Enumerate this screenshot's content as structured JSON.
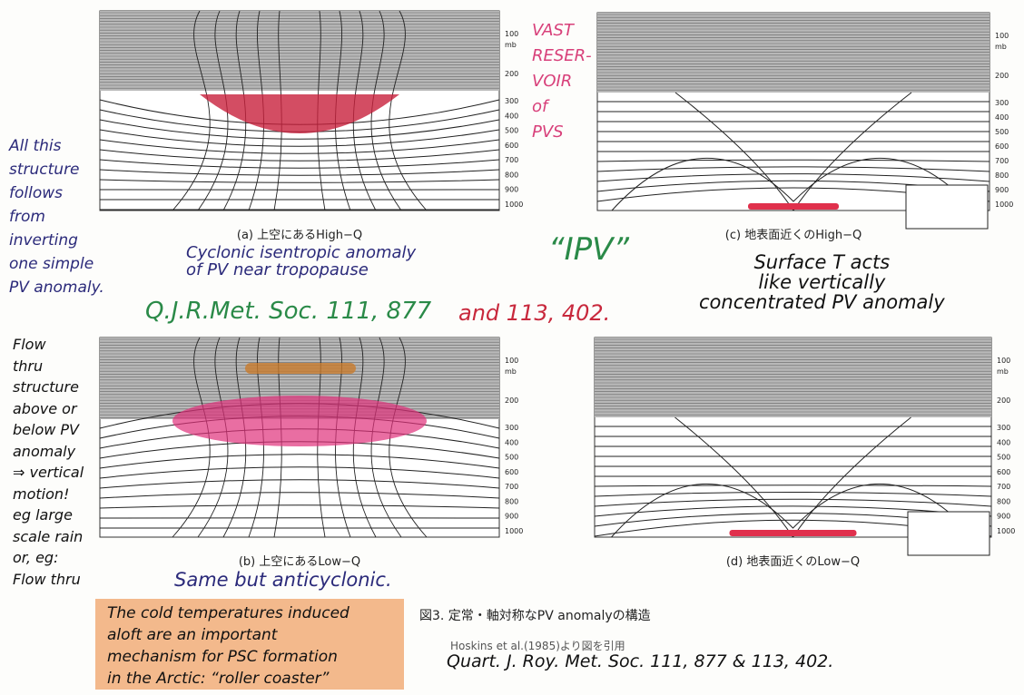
{
  "panels": [
    {
      "caption": "(a) 上空にあるHigh−Q",
      "pressure_labels": [
        "100",
        "mb",
        "200",
        "300",
        "400",
        "500",
        "600",
        "700",
        "800",
        "900",
        "1000"
      ]
    },
    {
      "caption": "(c) 地表面近くのHigh−Q",
      "pressure_labels": [
        "100",
        "mb",
        "200",
        "300",
        "400",
        "500",
        "600",
        "700",
        "800",
        "900",
        "1000"
      ]
    },
    {
      "caption": "(b) 上空にあるLow−Q",
      "pressure_labels": [
        "100",
        "mb",
        "200",
        "300",
        "400",
        "500",
        "600",
        "700",
        "800",
        "900",
        "1000"
      ]
    },
    {
      "caption": "(d) 地表面近くのLow−Q",
      "pressure_labels": [
        "100",
        "mb",
        "200",
        "300",
        "400",
        "500",
        "600",
        "700",
        "800",
        "900",
        "1000"
      ]
    }
  ],
  "figure_caption": {
    "title": "図3. 定常・軸対称なPV anomalyの構造",
    "source": "Hoskins et al.(1985)より図を引用"
  },
  "notes": {
    "left_top": [
      "All this",
      "structure",
      "follows",
      "from",
      "inverting",
      "one simple",
      "PV anomaly."
    ],
    "left_bottom": [
      "Flow",
      "thru",
      "structure",
      "above or",
      "below PV",
      "anomaly",
      "⇒ vertical",
      "motion!",
      "eg large",
      "scale rain",
      "or, eg:",
      "Flow thru"
    ],
    "vast": [
      "VAST",
      "RESER-",
      "VOIR",
      "of",
      "PVS"
    ],
    "cyclonic": [
      "Cyclonic isentropic anomaly",
      "of PV near tropopause"
    ],
    "ipv": "“IPV”",
    "surface": [
      "Surface T acts",
      "like vertically",
      "concentrated PV anomaly"
    ],
    "ref_green": "Q.J.R.Met. Soc. 111, 877",
    "ref_red": "and 113, 402.",
    "same": "Same but anticyclonic.",
    "cold": [
      "The cold temperatures induced",
      "aloft are an important",
      "mechanism for PSC formation",
      "in the Arctic: “roller coaster”"
    ],
    "ref_bottom": "Quart. J. Roy. Met. Soc. 111, 877 & 113, 402."
  }
}
